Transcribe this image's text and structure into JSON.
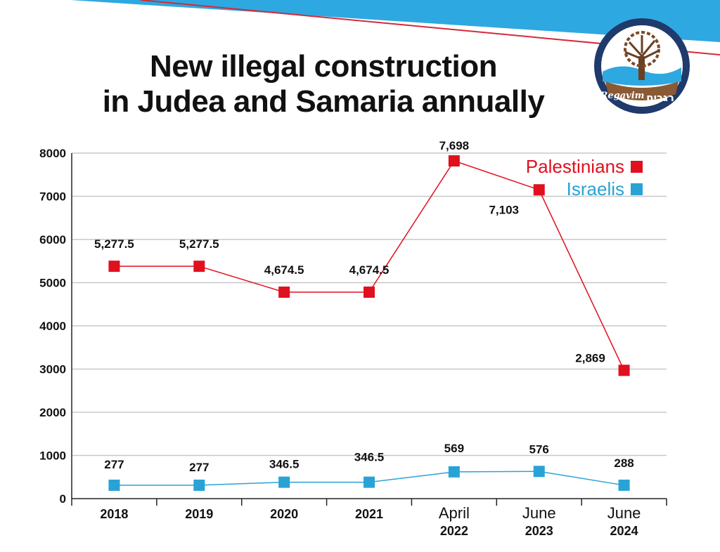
{
  "title_lines": [
    "New illegal construction",
    "in Judea and Samaria annually"
  ],
  "logo": {
    "name": "Regavim",
    "text_hebrew": "רגבים"
  },
  "colors": {
    "palestinians": "#e0101e",
    "israelis": "#29a3d6",
    "banner_blue": "#2ea8e0",
    "banner_line": "#d42a3a",
    "grid": "#c8c8c8",
    "text": "#111111",
    "logo_navy": "#1f3a6b"
  },
  "chart_data": {
    "type": "line",
    "title": "New illegal construction in Judea and Samaria annually",
    "categories": [
      [
        "2018"
      ],
      [
        "2019"
      ],
      [
        "2020"
      ],
      [
        "2021"
      ],
      [
        "April",
        "2022"
      ],
      [
        "June",
        "2023"
      ],
      [
        "June",
        "2024"
      ]
    ],
    "ylim": [
      0,
      8000
    ],
    "yticks": [
      0,
      1000,
      2000,
      3000,
      4000,
      5000,
      6000,
      7000,
      8000
    ],
    "grid": true,
    "legend_position": "top-right",
    "series": [
      {
        "name": "Palestinians",
        "color": "#e0101e",
        "values": [
          5277.5,
          5277.5,
          4674.5,
          4674.5,
          7698,
          7103,
          2869
        ],
        "plotted_values": [
          5380,
          5380,
          4780,
          4780,
          7820,
          7150,
          2970
        ],
        "labels": [
          "5,277.5",
          "5,277.5",
          "4,674.5",
          "4,674.5",
          "7,698",
          "7,103",
          "2,869"
        ]
      },
      {
        "name": "Israelis",
        "color": "#29a3d6",
        "values": [
          277,
          277,
          346.5,
          346.5,
          569,
          576,
          288
        ],
        "plotted_values": [
          310,
          310,
          380,
          380,
          620,
          630,
          310
        ],
        "labels": [
          "277",
          "277",
          "346.5",
          "346.5",
          "569",
          "576",
          "288"
        ]
      }
    ]
  }
}
